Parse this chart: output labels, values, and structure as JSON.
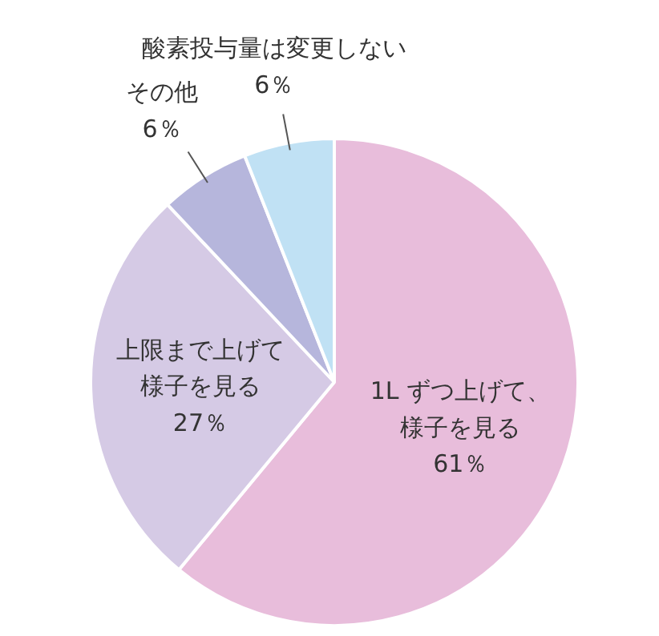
{
  "chart_data": {
    "type": "pie",
    "categories": [
      "1L ずつ上げて、様子を見る",
      "上限まで上げて様子を見る",
      "その他",
      "酸素投与量は変更しない"
    ],
    "values": [
      61,
      27,
      6,
      6
    ],
    "colors": [
      "#e8bddb",
      "#d5cae5",
      "#b6b6dc",
      "#c0e1f4"
    ],
    "value_labels": [
      "61％",
      "27％",
      "6％",
      "6％"
    ]
  }
}
